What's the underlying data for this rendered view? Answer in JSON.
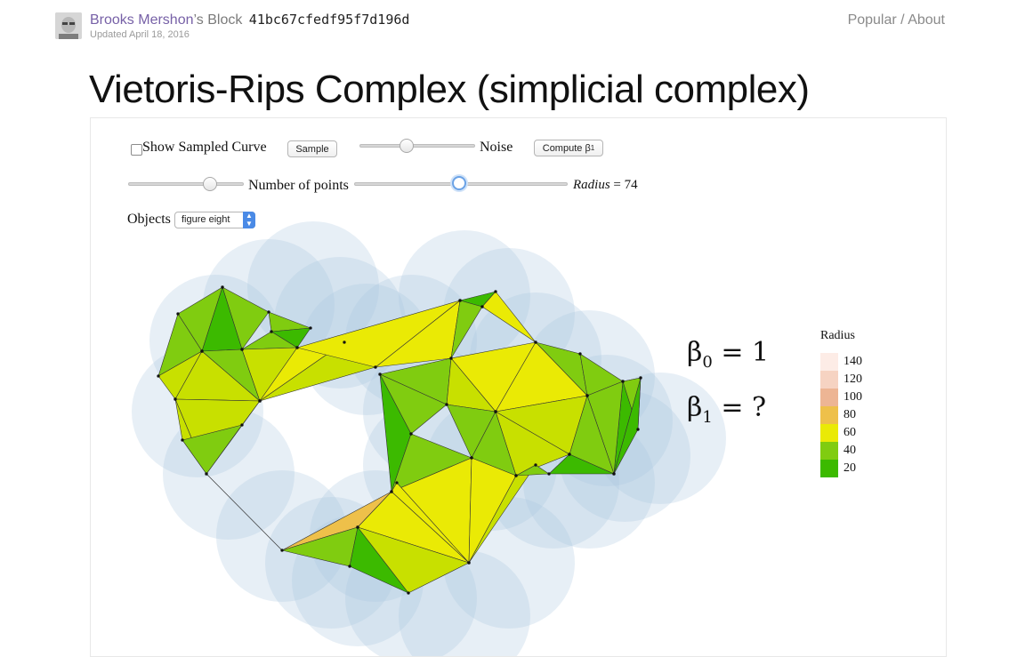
{
  "header": {
    "author": "Brooks Mershon",
    "suffix": "’s Block",
    "hash": "41bc67cfedf95f7d196d",
    "updated": "Updated April 18, 2016",
    "nav_popular": "Popular",
    "nav_sep": "/",
    "nav_about": "About"
  },
  "title": "Vietoris-Rips Complex (simplicial complex)",
  "controls": {
    "show_curve_label": "Show Sampled Curve",
    "show_curve_checked": false,
    "sample_button": "Sample",
    "noise_label": "Noise",
    "noise_level": 0.41,
    "compute_button": "Compute β",
    "compute_sub": "1",
    "num_points_label": "Number of points",
    "num_points_level": 0.71,
    "radius_slider_level": 0.49,
    "radius_label": "Radius",
    "radius_eq": "= 74",
    "objects_label": "Objects",
    "objects_selected": "figure eight"
  },
  "betti": {
    "b0_symbol": "β",
    "b0_sub": "0",
    "b0_value": "= 1",
    "b1_symbol": "β",
    "b1_sub": "1",
    "b1_value": "= ?"
  },
  "legend": {
    "title": "Radius",
    "items": [
      {
        "label": "140",
        "color": "#fdece6"
      },
      {
        "label": "120",
        "color": "#f6d3c2"
      },
      {
        "label": "100",
        "color": "#edb594"
      },
      {
        "label": "80",
        "color": "#eec04a"
      },
      {
        "label": "60",
        "color": "#eaea05"
      },
      {
        "label": "40",
        "color": "#80cc10"
      },
      {
        "label": "20",
        "color": "#3cba00"
      }
    ]
  },
  "colors": {
    "accent": "#7761a7",
    "disk": "#a9c4e0",
    "edge": "#333333"
  }
}
